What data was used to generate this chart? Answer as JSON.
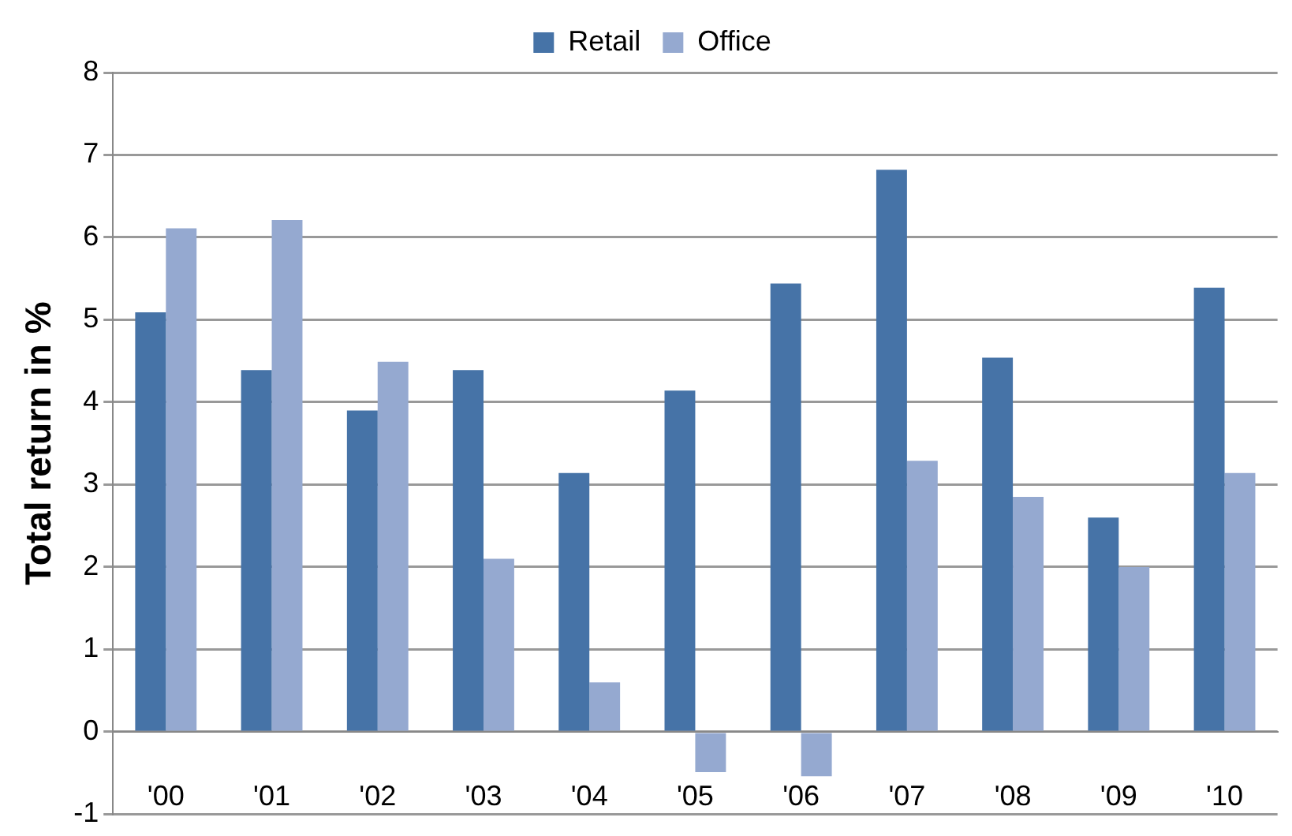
{
  "chart_data": {
    "type": "bar",
    "ylabel": "Total return in %",
    "categories": [
      "'00",
      "'01",
      "'02",
      "'03",
      "'04",
      "'05",
      "'06",
      "'07",
      "'08",
      "'09",
      "'10"
    ],
    "series": [
      {
        "name": "Retail",
        "color": "#4673a7",
        "values": [
          5.09,
          4.39,
          3.9,
          4.39,
          3.14,
          4.14,
          5.44,
          6.82,
          4.54,
          2.6,
          5.39
        ]
      },
      {
        "name": "Office",
        "color": "#95a9d0",
        "values": [
          6.11,
          6.21,
          4.49,
          2.1,
          0.6,
          -0.49,
          -0.54,
          3.29,
          2.85,
          2.0,
          3.14
        ]
      }
    ],
    "ylim": [
      -1,
      8
    ],
    "yticks": [
      -1,
      0,
      1,
      2,
      3,
      4,
      5,
      6,
      7,
      8
    ],
    "grid": "y",
    "legend": "top"
  }
}
